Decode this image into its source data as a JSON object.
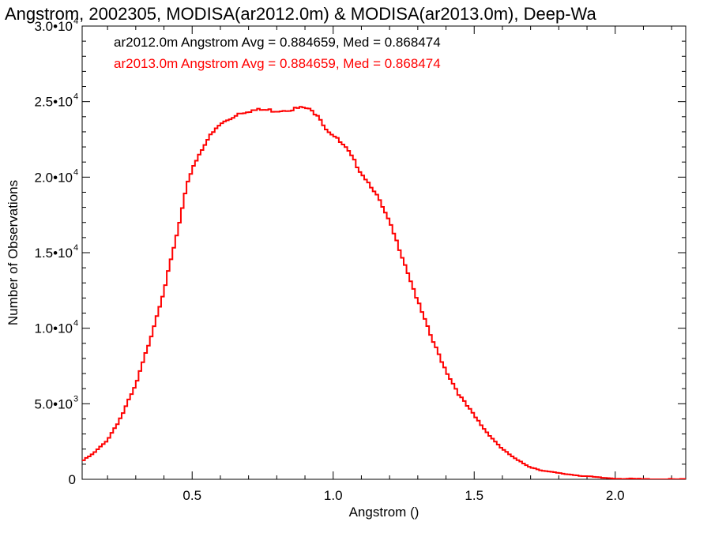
{
  "chart_data": {
    "type": "line",
    "step": true,
    "title": "Angstrom, 2002305, MODISA(ar2012.0m) & MODISA(ar2013.0m), Deep-Wa",
    "xlabel": "Angstrom ()",
    "ylabel": "Number of Observations",
    "xlim": [
      0.11,
      2.25
    ],
    "ylim": [
      0,
      30000
    ],
    "x_ticks": [
      {
        "value": 0.5,
        "label": "0.5"
      },
      {
        "value": 1.0,
        "label": "1.0"
      },
      {
        "value": 1.5,
        "label": "1.5"
      },
      {
        "value": 2.0,
        "label": "2.0"
      }
    ],
    "y_ticks": [
      {
        "value": 0,
        "label": "0",
        "sup": ""
      },
      {
        "value": 5000,
        "label": "5.0•10",
        "sup": "3"
      },
      {
        "value": 10000,
        "label": "1.0•10",
        "sup": "4"
      },
      {
        "value": 15000,
        "label": "1.5•10",
        "sup": "4"
      },
      {
        "value": 20000,
        "label": "2.0•10",
        "sup": "4"
      },
      {
        "value": 25000,
        "label": "2.5•10",
        "sup": "4"
      },
      {
        "value": 30000,
        "label": "3.0•10",
        "sup": "4"
      }
    ],
    "legend": [
      {
        "text": "ar2012.0m Angstrom Avg = 0.884659, Med = 0.868474",
        "color": "#000000"
      },
      {
        "text": "ar2013.0m Angstrom Avg = 0.884659, Med = 0.868474",
        "color": "#ff0000"
      }
    ],
    "legend_placement": "top-left",
    "bin_width": 0.01,
    "series": [
      {
        "color": "#ff0000",
        "x": [
          0.11,
          0.15,
          0.2,
          0.25,
          0.3,
          0.35,
          0.4,
          0.45,
          0.48,
          0.5,
          0.55,
          0.6,
          0.64,
          0.66,
          0.7,
          0.75,
          0.8,
          0.85,
          0.9,
          0.95,
          0.97,
          1.0,
          1.05,
          1.1,
          1.15,
          1.2,
          1.25,
          1.3,
          1.35,
          1.4,
          1.45,
          1.5,
          1.55,
          1.6,
          1.65,
          1.7,
          1.75,
          1.8,
          1.85,
          1.9,
          1.95,
          2.0,
          2.05,
          2.1,
          2.15,
          2.2,
          2.25
        ],
        "y": [
          1200,
          1700,
          2600,
          4200,
          6200,
          9200,
          12500,
          16500,
          19300,
          20600,
          22400,
          23500,
          23900,
          24200,
          24400,
          24450,
          24400,
          24500,
          24600,
          24100,
          23300,
          22800,
          21800,
          20300,
          19000,
          17000,
          14500,
          11800,
          9300,
          7200,
          5500,
          4200,
          3000,
          2000,
          1300,
          800,
          550,
          400,
          300,
          200,
          100,
          60,
          30,
          15,
          5,
          2,
          0
        ]
      }
    ]
  }
}
